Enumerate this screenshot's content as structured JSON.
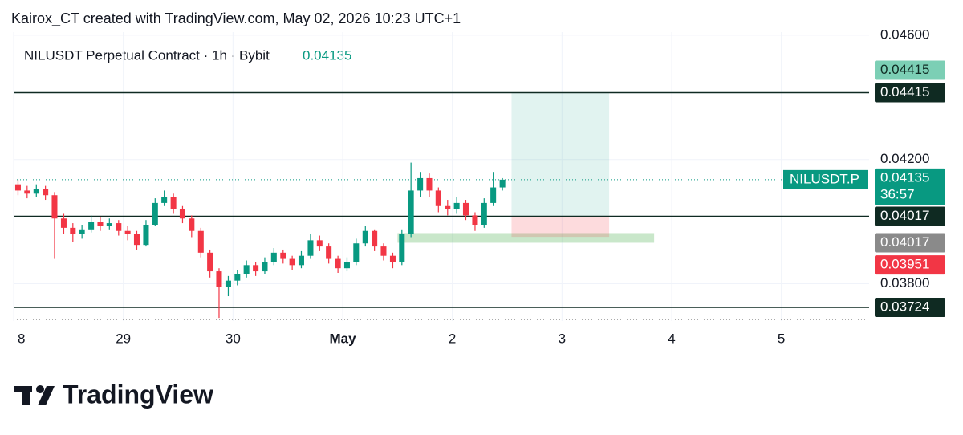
{
  "header": "Kairox_CT created with TradingView.com, May 02, 2026 10:23 UTC+1",
  "brand": "TradingView",
  "chart_data": {
    "type": "candlestick",
    "title": "NILUSDT Perpetual Contract · 1h · Bybit",
    "last_price": 0.04135,
    "symbol": "NILUSDT.P",
    "countdown": "36:57",
    "up_color": "#089981",
    "down_color": "#f23645",
    "grid": true,
    "xlim": [
      0,
      7.8
    ],
    "xticks": [
      {
        "value": 0,
        "label": "8"
      },
      {
        "value": 1,
        "label": "29"
      },
      {
        "value": 2,
        "label": "30"
      },
      {
        "value": 3,
        "label": "May"
      },
      {
        "value": 4,
        "label": "2"
      },
      {
        "value": 5,
        "label": "3"
      },
      {
        "value": 6,
        "label": "4"
      },
      {
        "value": 7,
        "label": "5"
      }
    ],
    "ylim": [
      0.0368,
      0.0461
    ],
    "yticks": [
      {
        "value": 0.046,
        "label": "0.04600"
      },
      {
        "value": 0.042,
        "label": "0.04200"
      },
      {
        "value": 0.038,
        "label": "0.03800"
      }
    ],
    "x": [
      0.04,
      0.123,
      0.207,
      0.29,
      0.373,
      0.457,
      0.54,
      0.623,
      0.707,
      0.79,
      0.873,
      0.957,
      1.04,
      1.123,
      1.207,
      1.29,
      1.373,
      1.457,
      1.54,
      1.623,
      1.707,
      1.79,
      1.873,
      1.957,
      2.04,
      2.123,
      2.207,
      2.29,
      2.373,
      2.457,
      2.54,
      2.623,
      2.707,
      2.79,
      2.873,
      2.957,
      3.04,
      3.123,
      3.207,
      3.29,
      3.373,
      3.457,
      3.54,
      3.623,
      3.707,
      3.79,
      3.873,
      3.957,
      4.04,
      4.123,
      4.207,
      4.29,
      4.373,
      4.457
    ],
    "open": [
      0.0412,
      0.041,
      0.0409,
      0.04105,
      0.04085,
      0.0401,
      0.0398,
      0.0396,
      0.03975,
      0.04,
      0.03985,
      0.03995,
      0.0397,
      0.0396,
      0.03925,
      0.0399,
      0.0406,
      0.0408,
      0.0404,
      0.0401,
      0.0397,
      0.039,
      0.0384,
      0.0379,
      0.0381,
      0.0383,
      0.0386,
      0.0384,
      0.0387,
      0.039,
      0.0388,
      0.0386,
      0.0389,
      0.0394,
      0.0392,
      0.0388,
      0.0385,
      0.0387,
      0.0393,
      0.0397,
      0.0392,
      0.0389,
      0.0387,
      0.0396,
      0.041,
      0.0414,
      0.041,
      0.0405,
      0.0404,
      0.0406,
      0.0402,
      0.0399,
      0.0406,
      0.0411
    ],
    "high": [
      0.04135,
      0.04115,
      0.0412,
      0.04115,
      0.04095,
      0.04025,
      0.03995,
      0.0399,
      0.0402,
      0.04015,
      0.0401,
      0.04005,
      0.03985,
      0.0397,
      0.04005,
      0.04075,
      0.041,
      0.0409,
      0.0405,
      0.0402,
      0.0398,
      0.0391,
      0.0385,
      0.03825,
      0.03845,
      0.03875,
      0.0387,
      0.03885,
      0.03915,
      0.0391,
      0.0389,
      0.03905,
      0.0396,
      0.03955,
      0.0393,
      0.0389,
      0.03885,
      0.03945,
      0.03985,
      0.03975,
      0.0393,
      0.039,
      0.03975,
      0.0419,
      0.0416,
      0.04155,
      0.0411,
      0.0407,
      0.0408,
      0.0407,
      0.0403,
      0.04075,
      0.0416,
      0.0414
    ],
    "low": [
      0.04085,
      0.04075,
      0.0408,
      0.0407,
      0.0388,
      0.0396,
      0.03935,
      0.03945,
      0.03965,
      0.0397,
      0.03975,
      0.03955,
      0.0394,
      0.0391,
      0.0392,
      0.03985,
      0.0405,
      0.04025,
      0.03995,
      0.0395,
      0.03885,
      0.0382,
      0.0369,
      0.0376,
      0.03795,
      0.0382,
      0.03825,
      0.0383,
      0.0386,
      0.03865,
      0.03845,
      0.0385,
      0.0388,
      0.03905,
      0.03865,
      0.03835,
      0.0384,
      0.0386,
      0.0392,
      0.03905,
      0.03875,
      0.0385,
      0.0386,
      0.0395,
      0.0408,
      0.0408,
      0.0403,
      0.0402,
      0.04025,
      0.04005,
      0.0397,
      0.0398,
      0.0405,
      0.041
    ],
    "close": [
      0.041,
      0.0409,
      0.04105,
      0.04085,
      0.0401,
      0.0398,
      0.0396,
      0.03975,
      0.04,
      0.03985,
      0.03995,
      0.0397,
      0.0396,
      0.03925,
      0.0399,
      0.0406,
      0.0408,
      0.0404,
      0.0401,
      0.0397,
      0.039,
      0.0384,
      0.0379,
      0.0381,
      0.0383,
      0.0386,
      0.0384,
      0.0387,
      0.039,
      0.0388,
      0.0386,
      0.0389,
      0.0394,
      0.0392,
      0.0388,
      0.0385,
      0.0387,
      0.0393,
      0.0397,
      0.0392,
      0.0389,
      0.0387,
      0.0396,
      0.041,
      0.0414,
      0.041,
      0.0405,
      0.0404,
      0.0406,
      0.0402,
      0.0399,
      0.0406,
      0.0411,
      0.04135
    ],
    "hlines": [
      {
        "value": 0.04415
      },
      {
        "value": 0.04017
      },
      {
        "value": 0.03724
      }
    ],
    "position": {
      "x": [
        4.54,
        5.43
      ],
      "target": 0.04415,
      "entry": 0.04017,
      "stop": 0.03951
    },
    "zone": {
      "x": [
        3.5,
        5.84
      ],
      "y": [
        0.03932,
        0.03963
      ]
    }
  }
}
